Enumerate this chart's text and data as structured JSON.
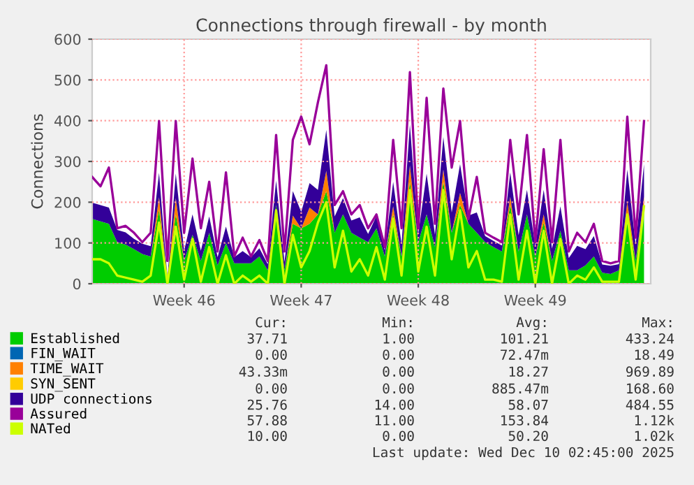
{
  "chart_data": {
    "type": "area",
    "stacked": true,
    "title": "Connections through firewall - by month",
    "ylabel": "Connections",
    "categories": [
      null,
      null,
      null,
      null,
      null,
      null,
      null,
      null,
      null,
      null,
      null,
      "Week 46",
      null,
      null,
      null,
      null,
      null,
      null,
      null,
      null,
      null,
      null,
      null,
      null,
      null,
      "Week 47",
      null,
      null,
      null,
      null,
      null,
      null,
      null,
      null,
      null,
      null,
      null,
      null,
      null,
      "Week 48",
      null,
      null,
      null,
      null,
      null,
      null,
      null,
      null,
      null,
      null,
      null,
      null,
      null,
      "Week 49",
      null,
      null,
      null,
      null,
      null,
      null,
      null,
      null,
      null,
      null,
      null,
      null,
      null
    ],
    "ylim": [
      0,
      600
    ],
    "yticks": [
      0,
      100,
      200,
      300,
      400,
      500,
      600
    ],
    "grid": true,
    "legend": "bottom",
    "series": [
      {
        "name": "Established",
        "color": "#00cc00",
        "values": [
          159,
          153,
          147,
          102,
          96,
          85,
          73,
          67,
          182,
          5,
          170,
          56,
          120,
          56,
          125,
          45,
          100,
          50,
          50,
          50,
          67,
          33,
          193,
          33,
          147,
          136,
          147,
          170,
          227,
          125,
          170,
          125,
          113,
          102,
          136,
          67,
          170,
          67,
          250,
          102,
          170,
          90,
          250,
          125,
          193,
          147,
          125,
          102,
          90,
          79,
          193,
          79,
          170,
          67,
          150,
          56,
          130,
          33,
          33,
          45,
          67,
          27,
          24,
          33,
          170,
          56,
          193
        ]
      },
      {
        "name": "FIN_WAIT",
        "color": "#0066b3",
        "values": [
          null,
          null,
          null,
          null,
          null,
          null,
          null,
          null,
          null,
          null,
          null,
          null,
          null,
          null,
          null,
          null,
          null,
          null,
          null,
          null,
          null,
          null,
          null,
          null,
          null,
          null,
          null,
          null,
          null,
          null,
          null,
          null,
          null,
          null,
          null,
          null,
          null,
          null,
          null,
          null,
          null,
          null,
          null,
          null,
          null,
          null,
          null,
          null,
          null,
          null,
          null,
          null,
          null,
          null,
          null,
          null,
          null,
          null,
          null,
          null,
          null,
          null,
          null,
          null,
          null,
          null,
          null
        ]
      },
      {
        "name": "TIME_WAIT",
        "color": "#ff8000",
        "values": [
          0,
          0,
          0,
          0,
          0,
          0,
          0,
          0,
          30,
          0,
          40,
          0,
          0,
          0,
          0,
          0,
          0,
          0,
          0,
          0,
          0,
          0,
          0,
          0,
          20,
          0,
          40,
          0,
          50,
          0,
          0,
          0,
          0,
          0,
          0,
          0,
          20,
          0,
          40,
          0,
          0,
          0,
          30,
          0,
          30,
          0,
          0,
          0,
          0,
          0,
          20,
          0,
          0,
          0,
          20,
          0,
          0,
          0,
          0,
          0,
          0,
          0,
          0,
          0,
          30,
          0,
          20
        ]
      },
      {
        "name": "SYN_SENT",
        "color": "#ffcc00",
        "values": [
          null,
          null,
          null,
          null,
          null,
          null,
          null,
          null,
          null,
          null,
          null,
          null,
          null,
          null,
          null,
          null,
          null,
          null,
          null,
          null,
          null,
          null,
          null,
          null,
          null,
          null,
          null,
          null,
          null,
          null,
          null,
          null,
          null,
          null,
          null,
          null,
          null,
          null,
          null,
          null,
          null,
          null,
          null,
          null,
          null,
          null,
          null,
          null,
          null,
          null,
          null,
          null,
          null,
          null,
          null,
          null,
          null,
          null,
          null,
          null,
          null,
          null,
          null,
          null,
          null,
          null,
          null
        ]
      },
      {
        "name": "UDP connections",
        "color": "#330099",
        "values": [
          40,
          40,
          40,
          30,
          30,
          25,
          25,
          25,
          60,
          10,
          60,
          25,
          50,
          25,
          40,
          20,
          40,
          15,
          30,
          15,
          20,
          15,
          60,
          20,
          60,
          40,
          60,
          60,
          100,
          40,
          40,
          30,
          50,
          20,
          30,
          15,
          60,
          30,
          100,
          20,
          100,
          30,
          80,
          50,
          70,
          20,
          50,
          15,
          15,
          15,
          60,
          40,
          60,
          25,
          60,
          30,
          60,
          30,
          60,
          40,
          50,
          20,
          20,
          15,
          80,
          40,
          80
        ]
      },
      {
        "name": "Assured",
        "type": "line",
        "color": "#990099",
        "values": [
          262,
          239,
          285,
          136,
          142,
          125,
          102,
          125,
          399,
          56,
          399,
          125,
          307,
          136,
          250,
          79,
          273,
          67,
          113,
          67,
          107,
          56,
          365,
          79,
          353,
          410,
          342,
          445,
          536,
          193,
          227,
          170,
          193,
          136,
          170,
          90,
          353,
          136,
          519,
          136,
          456,
          147,
          479,
          285,
          399,
          159,
          262,
          125,
          113,
          102,
          353,
          170,
          365,
          102,
          330,
          102,
          353,
          79,
          125,
          102,
          147,
          56,
          50,
          56,
          410,
          113,
          399
        ]
      },
      {
        "name": "NATed",
        "type": "line",
        "color": "#ccff00",
        "values": [
          60,
          60,
          50,
          20,
          15,
          10,
          5,
          20,
          150,
          0,
          140,
          10,
          110,
          5,
          90,
          0,
          70,
          0,
          20,
          5,
          20,
          0,
          180,
          0,
          120,
          40,
          80,
          150,
          200,
          40,
          130,
          30,
          60,
          20,
          90,
          10,
          160,
          20,
          230,
          30,
          140,
          20,
          230,
          60,
          180,
          40,
          80,
          10,
          10,
          5,
          170,
          10,
          130,
          0,
          130,
          0,
          110,
          0,
          20,
          10,
          40,
          5,
          5,
          5,
          170,
          10,
          190
        ]
      }
    ],
    "annotations": [
      "Cur:",
      "Min:",
      "Avg:",
      "Max:",
      "37.71",
      "1.00",
      "101.21",
      "433.24",
      "0.00",
      "0.00",
      "72.47m",
      "18.49",
      "43.33m",
      "0.00",
      "18.27",
      "969.89",
      "0.00",
      "0.00",
      "885.47m",
      "168.60",
      "25.76",
      "14.00",
      "58.07",
      "484.55",
      "57.88",
      "11.00",
      "153.84",
      "1.12k",
      "10.00",
      "0.00",
      "50.20",
      "1.02k",
      "Last update: Wed Dec 10 02:45:00 2025"
    ]
  }
}
